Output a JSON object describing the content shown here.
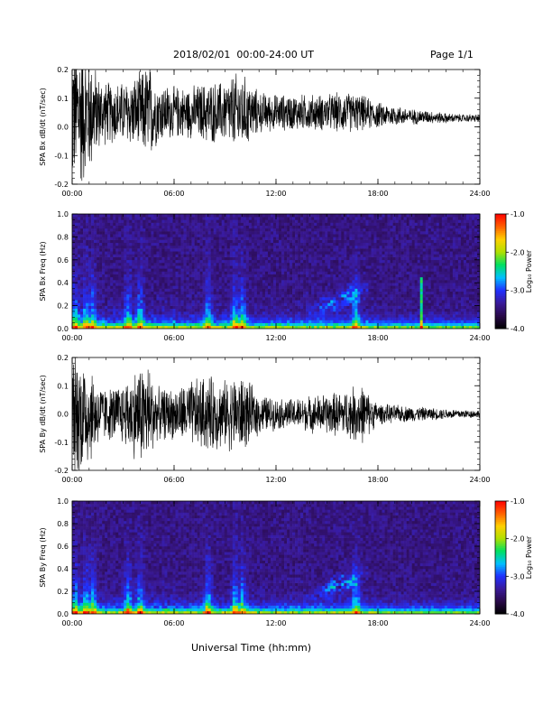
{
  "header": {
    "date_range": "2018/02/01  00:00-24:00 UT",
    "page": "Page 1/1"
  },
  "footer": {
    "xlabel": "Universal Time (hh:mm)"
  },
  "colors": {
    "trace": "#000000",
    "colormap": [
      "#000000",
      "#2a0a4a",
      "#3a1a9a",
      "#2030ff",
      "#00c0ff",
      "#00e060",
      "#b0e000",
      "#ffd000",
      "#ff6000",
      "#ff0000"
    ]
  },
  "chart_data": [
    {
      "type": "line",
      "name": "bx-timeseries",
      "ylabel": "SPA Bx dB/dt (nT/sec)",
      "ylim": [
        -0.2,
        0.2
      ],
      "y_ticks": [
        "-0.2",
        "-0.1",
        "0.0",
        "0.1",
        "0.2"
      ],
      "xlim_hours": [
        0,
        24
      ],
      "x_ticks": [
        "00:00",
        "06:00",
        "12:00",
        "18:00",
        "24:00"
      ],
      "envelope": {
        "hours": [
          0,
          0.5,
          1,
          1.5,
          2,
          3,
          4,
          4.5,
          5,
          6,
          7,
          8,
          9,
          9.5,
          10,
          11,
          12,
          13,
          14,
          15,
          16,
          17,
          18,
          19,
          20,
          21,
          22,
          23,
          24
        ],
        "center": [
          0.05,
          0.05,
          0.05,
          0.05,
          0.05,
          0.05,
          0.05,
          0.05,
          0.05,
          0.05,
          0.05,
          0.05,
          0.05,
          0.05,
          0.05,
          0.05,
          0.05,
          0.05,
          0.05,
          0.05,
          0.05,
          0.05,
          0.04,
          0.04,
          0.035,
          0.035,
          0.03,
          0.03,
          0.03
        ],
        "amplitude": [
          0.3,
          0.3,
          0.25,
          0.15,
          0.12,
          0.12,
          0.15,
          0.2,
          0.12,
          0.1,
          0.1,
          0.12,
          0.12,
          0.15,
          0.15,
          0.08,
          0.07,
          0.07,
          0.07,
          0.07,
          0.08,
          0.07,
          0.05,
          0.04,
          0.03,
          0.025,
          0.02,
          0.015,
          0.015
        ]
      }
    },
    {
      "type": "heatmap",
      "name": "bx-spectrogram",
      "ylabel": "SPA Bx Freq (Hz)",
      "ylim": [
        0,
        1.0
      ],
      "y_ticks": [
        "0.0",
        "0.2",
        "0.4",
        "0.6",
        "0.8",
        "1.0"
      ],
      "xlim_hours": [
        0,
        24
      ],
      "x_ticks": [
        "00:00",
        "06:00",
        "12:00",
        "18:00",
        "24:00"
      ],
      "colorbar": {
        "label": "Log₁₀ Power",
        "range": [
          -4.0,
          -1.0
        ],
        "ticks": [
          "-1.0",
          "-2.0",
          "-3.0",
          "-4.0"
        ]
      },
      "bright_bands_hours": [
        0.2,
        0.8,
        1.2,
        3.3,
        4.0,
        8.0,
        9.6,
        10.0,
        16.7
      ],
      "tones": [
        {
          "hour": 20.5,
          "fmax": 0.45
        }
      ]
    },
    {
      "type": "line",
      "name": "by-timeseries",
      "ylabel": "SPA By dB/dt (nT/sec)",
      "ylim": [
        -0.2,
        0.2
      ],
      "y_ticks": [
        "-0.2",
        "-0.1",
        "0.0",
        "0.1",
        "0.2"
      ],
      "xlim_hours": [
        0,
        24
      ],
      "x_ticks": [
        "00:00",
        "06:00",
        "12:00",
        "18:00",
        "24:00"
      ],
      "envelope": {
        "hours": [
          0,
          0.5,
          1,
          1.5,
          2,
          3,
          4,
          4.5,
          5,
          6,
          7,
          8,
          9,
          9.5,
          10,
          11,
          12,
          13,
          14,
          15,
          16,
          17,
          18,
          19,
          20,
          21,
          22,
          23,
          24
        ],
        "center": [
          0.0,
          0.0,
          0.0,
          0.0,
          0.0,
          0.0,
          0.0,
          0.0,
          0.0,
          0.0,
          0.0,
          0.0,
          0.0,
          0.0,
          0.0,
          0.0,
          0.0,
          0.0,
          0.0,
          0.0,
          0.0,
          0.0,
          0.0,
          0.0,
          0.0,
          0.0,
          0.0,
          0.0,
          0.0
        ],
        "amplitude": [
          0.25,
          0.25,
          0.2,
          0.13,
          0.1,
          0.12,
          0.2,
          0.2,
          0.1,
          0.1,
          0.13,
          0.15,
          0.13,
          0.15,
          0.15,
          0.08,
          0.06,
          0.06,
          0.07,
          0.08,
          0.09,
          0.12,
          0.04,
          0.035,
          0.03,
          0.025,
          0.02,
          0.018,
          0.015
        ]
      }
    },
    {
      "type": "heatmap",
      "name": "by-spectrogram",
      "ylabel": "SPA By Freq (Hz)",
      "ylim": [
        0,
        1.0
      ],
      "y_ticks": [
        "0.0",
        "0.2",
        "0.4",
        "0.6",
        "0.8",
        "1.0"
      ],
      "xlim_hours": [
        0,
        24
      ],
      "x_ticks": [
        "00:00",
        "06:00",
        "12:00",
        "18:00",
        "24:00"
      ],
      "colorbar": {
        "label": "Log₁₀ Power",
        "range": [
          -4.0,
          -1.0
        ],
        "ticks": [
          "-1.0",
          "-2.0",
          "-3.0",
          "-4.0"
        ]
      },
      "bright_bands_hours": [
        0.2,
        0.8,
        1.2,
        3.3,
        4.0,
        8.0,
        9.6,
        10.0,
        16.7
      ],
      "tones": []
    }
  ]
}
